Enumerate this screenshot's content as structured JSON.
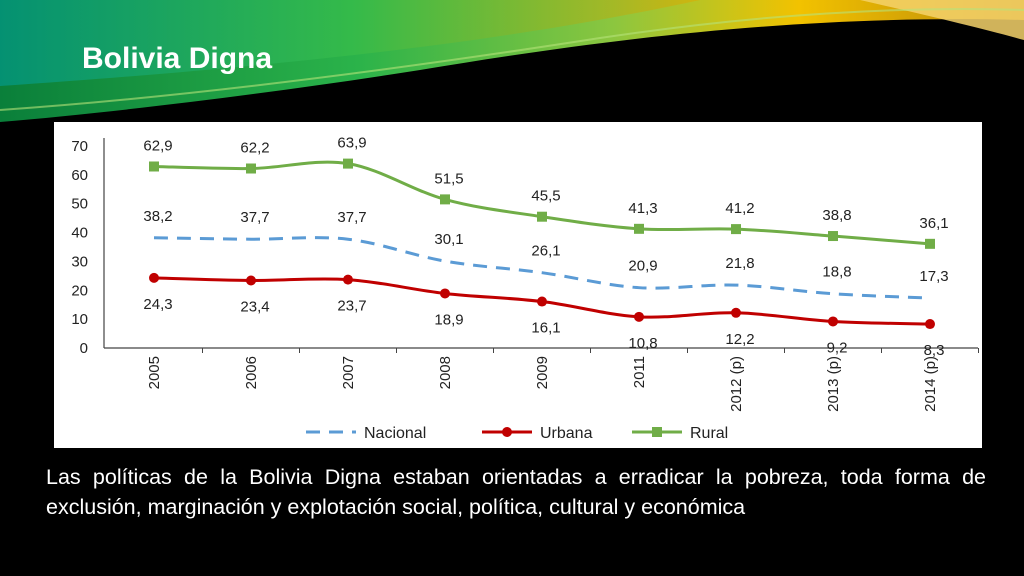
{
  "slide": {
    "title": "Bolivia Digna",
    "body": "Las políticas de la Bolivia Digna estaban orientadas a erradicar la pobreza, toda forma de exclusión, marginación y explotación social, política, cultural y económica"
  },
  "colors": {
    "nacional": "#5b9bd5",
    "urbana": "#c00000",
    "rural": "#70ad47",
    "background": "#000000",
    "banner_green": "#1fa34a",
    "banner_yellow": "#f2c200"
  },
  "chart_data": {
    "type": "line",
    "title": "",
    "xlabel": "",
    "ylabel": "",
    "categories": [
      "2005",
      "2006",
      "2007",
      "2008",
      "2009",
      "2011",
      "2012 (p)",
      "2013 (p)",
      "2014 (p)"
    ],
    "ylim": [
      0,
      70
    ],
    "yticks": [
      "0",
      "10",
      "20",
      "30",
      "40",
      "50",
      "60",
      "70"
    ],
    "grid": false,
    "legend_position": "bottom",
    "series": [
      {
        "name": "Nacional",
        "style": "dashed",
        "values": [
          38.2,
          37.7,
          37.7,
          30.1,
          26.1,
          20.9,
          21.8,
          18.8,
          17.3
        ],
        "labels": [
          "38,2",
          "37,7",
          "37,7",
          "30,1",
          "26,1",
          "20,9",
          "21,8",
          "18,8",
          "17,3"
        ]
      },
      {
        "name": "Urbana",
        "style": "solid-circle",
        "values": [
          24.3,
          23.4,
          23.7,
          18.9,
          16.1,
          10.8,
          12.2,
          9.2,
          8.3
        ],
        "labels": [
          "24,3",
          "23,4",
          "23,7",
          "18,9",
          "16,1",
          "10,8",
          "12,2",
          "9,2",
          "8,3"
        ]
      },
      {
        "name": "Rural",
        "style": "solid-square",
        "values": [
          62.9,
          62.2,
          63.9,
          51.5,
          45.5,
          41.3,
          41.2,
          38.8,
          36.1
        ],
        "labels": [
          "62,9",
          "62,2",
          "63,9",
          "51,5",
          "45,5",
          "41,3",
          "41,2",
          "38,8",
          "36,1"
        ]
      }
    ]
  }
}
